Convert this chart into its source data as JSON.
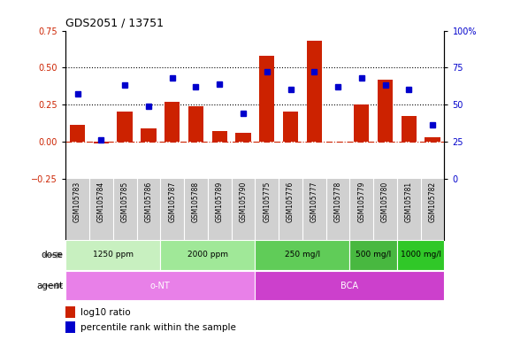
{
  "title": "GDS2051 / 13751",
  "samples": [
    "GSM105783",
    "GSM105784",
    "GSM105785",
    "GSM105786",
    "GSM105787",
    "GSM105788",
    "GSM105789",
    "GSM105790",
    "GSM105775",
    "GSM105776",
    "GSM105777",
    "GSM105778",
    "GSM105779",
    "GSM105780",
    "GSM105781",
    "GSM105782"
  ],
  "log10_ratio": [
    0.11,
    -0.01,
    0.2,
    0.09,
    0.27,
    0.24,
    0.07,
    0.06,
    0.58,
    0.2,
    0.68,
    0.0,
    0.25,
    0.42,
    0.17,
    0.03
  ],
  "percentile_rank": [
    57,
    26,
    63,
    49,
    68,
    62,
    64,
    44,
    72,
    60,
    72,
    62,
    68,
    63,
    60,
    36
  ],
  "dose_groups": [
    {
      "label": "1250 ppm",
      "start": 0,
      "end": 4,
      "color": "#c8f0c0"
    },
    {
      "label": "2000 ppm",
      "start": 4,
      "end": 8,
      "color": "#a0e898"
    },
    {
      "label": "250 mg/l",
      "start": 8,
      "end": 12,
      "color": "#60cc58"
    },
    {
      "label": "500 mg/l",
      "start": 12,
      "end": 14,
      "color": "#48b840"
    },
    {
      "label": "1000 mg/l",
      "start": 14,
      "end": 16,
      "color": "#30c828"
    }
  ],
  "agent_groups": [
    {
      "label": "o-NT",
      "start": 0,
      "end": 8,
      "color": "#e880e8"
    },
    {
      "label": "BCA",
      "start": 8,
      "end": 16,
      "color": "#cc40cc"
    }
  ],
  "bar_color": "#cc2200",
  "dot_color": "#0000cc",
  "left_ylim": [
    -0.25,
    0.75
  ],
  "right_ylim": [
    0,
    100
  ],
  "left_yticks": [
    -0.25,
    0.0,
    0.25,
    0.5,
    0.75
  ],
  "right_yticks": [
    0,
    25,
    50,
    75,
    100
  ],
  "right_yticklabels": [
    "0",
    "25",
    "50",
    "75",
    "100%"
  ],
  "hlines": [
    0.25,
    0.5
  ],
  "background_color": "#ffffff",
  "sample_bg_color": "#d0d0d0",
  "legend_labels": [
    "log10 ratio",
    "percentile rank within the sample"
  ]
}
